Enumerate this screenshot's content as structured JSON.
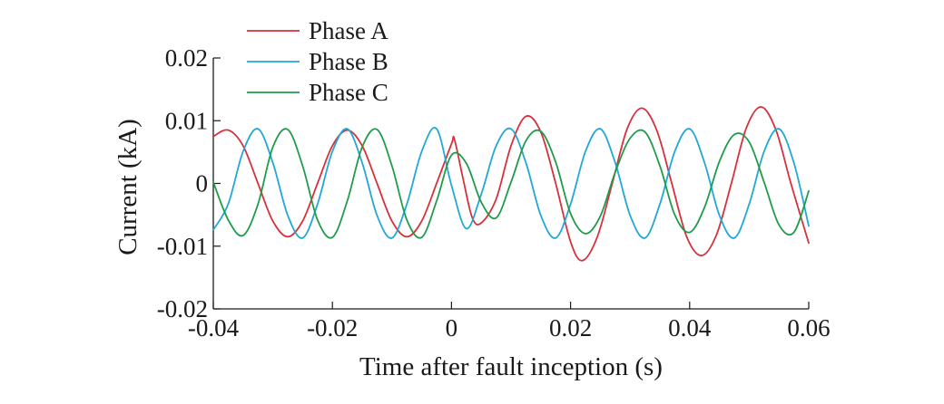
{
  "chart_data": {
    "type": "line",
    "xlabel": "Time after fault inception (s)",
    "ylabel": "Current (kA)",
    "xlim": [
      -0.04,
      0.06
    ],
    "ylim": [
      -0.02,
      0.02
    ],
    "xticks": [
      -0.04,
      -0.02,
      0,
      0.02,
      0.04,
      0.06
    ],
    "xtick_labels": [
      "-0.04",
      "-0.02",
      "0",
      "0.02",
      "0.04",
      "0.06"
    ],
    "yticks": [
      -0.02,
      -0.01,
      0,
      0.01,
      0.02
    ],
    "ytick_labels": [
      "-0.02",
      "-0.01",
      "0",
      "0.01",
      "0.02"
    ],
    "grid": false,
    "legend_position": "top-left",
    "series": [
      {
        "name": "Phase A",
        "color": "#d6313c",
        "x": [
          -0.04,
          -0.0375,
          -0.035,
          -0.0325,
          -0.03,
          -0.0275,
          -0.025,
          -0.0225,
          -0.02,
          -0.0175,
          -0.015,
          -0.0125,
          -0.01,
          -0.0075,
          -0.005,
          -0.0025,
          0,
          0.0005,
          0.002,
          0.0035,
          0.005,
          0.0075,
          0.01,
          0.0125,
          0.015,
          0.0175,
          0.02,
          0.022,
          0.0245,
          0.027,
          0.0295,
          0.032,
          0.0345,
          0.037,
          0.0395,
          0.042,
          0.0445,
          0.047,
          0.0495,
          0.052,
          0.0545,
          0.057,
          0.06
        ],
        "y": [
          0.0075,
          0.0085,
          0.006,
          0,
          -0.006,
          -0.0085,
          -0.006,
          0,
          0.006,
          0.0085,
          0.006,
          0,
          -0.006,
          -0.0085,
          -0.006,
          0,
          0.0063,
          0.007,
          0.0005,
          -0.0055,
          -0.0063,
          -0.0025,
          0.006,
          0.0107,
          0.0082,
          0,
          -0.0093,
          -0.0123,
          -0.0085,
          0,
          0.0087,
          0.012,
          0.0084,
          0,
          -0.0085,
          -0.0115,
          -0.0082,
          0,
          0.0088,
          0.0122,
          0.0085,
          0,
          -0.0095
        ]
      },
      {
        "name": "Phase B",
        "color": "#22a8d6",
        "x": [
          -0.04,
          -0.0375,
          -0.035,
          -0.0325,
          -0.03,
          -0.0275,
          -0.025,
          -0.0225,
          -0.02,
          -0.0175,
          -0.015,
          -0.0125,
          -0.01,
          -0.0075,
          -0.005,
          -0.0025,
          0,
          0.0025,
          0.005,
          0.0075,
          0.01,
          0.0125,
          0.015,
          0.0175,
          0.02,
          0.0225,
          0.025,
          0.0275,
          0.03,
          0.0325,
          0.035,
          0.0375,
          0.04,
          0.0425,
          0.045,
          0.0475,
          0.05,
          0.0525,
          0.055,
          0.0575,
          0.06
        ],
        "y": [
          -0.0074,
          -0.0033,
          0.0051,
          0.0087,
          0.0033,
          -0.0051,
          -0.0087,
          -0.0033,
          0.0051,
          0.0087,
          0.0033,
          -0.0051,
          -0.0087,
          -0.0033,
          0.0051,
          0.0087,
          -0.0003,
          -0.0072,
          -0.0017,
          0.006,
          0.0087,
          0.0033,
          -0.0051,
          -0.0087,
          -0.0033,
          0.0051,
          0.0087,
          0.0033,
          -0.0051,
          -0.0087,
          -0.0033,
          0.0051,
          0.0087,
          0.0033,
          -0.0051,
          -0.0087,
          -0.0033,
          0.0051,
          0.0087,
          0.0033,
          -0.0068
        ]
      },
      {
        "name": "Phase C",
        "color": "#1f9b4a",
        "x": [
          -0.04,
          -0.0375,
          -0.035,
          -0.0325,
          -0.03,
          -0.0275,
          -0.025,
          -0.0225,
          -0.02,
          -0.0175,
          -0.015,
          -0.0125,
          -0.01,
          -0.0075,
          -0.005,
          -0.0025,
          0,
          0.0025,
          0.005,
          0.0075,
          0.01,
          0.0125,
          0.015,
          0.0175,
          0.02,
          0.0225,
          0.025,
          0.0275,
          0.03,
          0.0325,
          0.035,
          0.0375,
          0.04,
          0.0425,
          0.045,
          0.0475,
          0.05,
          0.0525,
          0.055,
          0.0575,
          0.06
        ],
        "y": [
          0.0002,
          -0.0058,
          -0.0083,
          -0.0033,
          0.0058,
          0.0086,
          0.0028,
          -0.0058,
          -0.0086,
          -0.0028,
          0.0058,
          0.0086,
          0.0028,
          -0.0058,
          -0.0086,
          -0.0028,
          0.0045,
          0.0032,
          -0.003,
          -0.0055,
          0.0002,
          0.0068,
          0.0083,
          0.0034,
          -0.0048,
          -0.008,
          -0.0052,
          0.0018,
          0.0072,
          0.0082,
          0.0028,
          -0.005,
          -0.0078,
          -0.0038,
          0.0035,
          0.0078,
          0.0066,
          0.0002,
          -0.0066,
          -0.0078,
          -0.0012
        ]
      }
    ]
  }
}
